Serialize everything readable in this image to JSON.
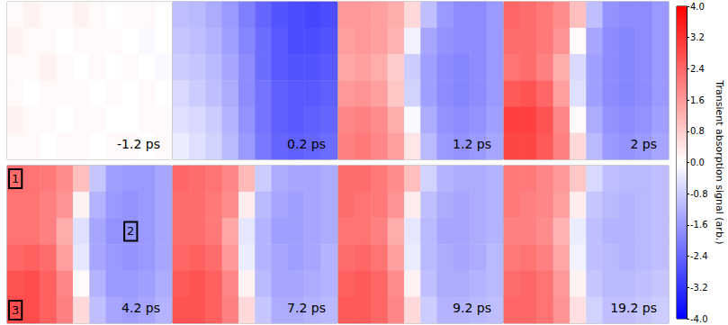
{
  "chart_data": {
    "type": "heatmap",
    "panels": [
      {
        "title": "-1.2 ps",
        "cells": [
          [
            0.1,
            0.2,
            0.1,
            0.1,
            0.2,
            0.1,
            0.0,
            0.1,
            0.1,
            0.0
          ],
          [
            0.2,
            0.1,
            0.1,
            0.0,
            0.1,
            0.1,
            0.1,
            0.0,
            -0.1,
            0.0
          ],
          [
            0.1,
            0.1,
            0.2,
            0.1,
            0.0,
            0.1,
            0.0,
            0.1,
            0.0,
            -0.1
          ],
          [
            0.1,
            0.0,
            0.1,
            0.1,
            0.1,
            0.0,
            0.1,
            0.0,
            0.1,
            0.0
          ],
          [
            0.2,
            0.1,
            0.1,
            0.0,
            0.1,
            0.1,
            0.0,
            0.0,
            0.1,
            0.1
          ],
          [
            0.1,
            0.1,
            0.0,
            0.1,
            0.1,
            0.0,
            0.1,
            0.1,
            0.0,
            0.1
          ]
        ]
      },
      {
        "title": "0.2 ps",
        "cells": [
          [
            -1.0,
            -1.1,
            -1.3,
            -1.6,
            -2.0,
            -2.4,
            -2.7,
            -2.8,
            -2.9,
            -2.8
          ],
          [
            -0.9,
            -1.0,
            -1.2,
            -1.5,
            -1.9,
            -2.3,
            -2.6,
            -2.8,
            -2.8,
            -2.7
          ],
          [
            -0.8,
            -0.9,
            -1.1,
            -1.4,
            -1.8,
            -2.3,
            -2.6,
            -2.7,
            -2.7,
            -2.6
          ],
          [
            -0.6,
            -0.8,
            -1.0,
            -1.3,
            -1.8,
            -2.2,
            -2.5,
            -2.6,
            -2.6,
            -2.5
          ],
          [
            -0.5,
            -0.6,
            -0.8,
            -1.2,
            -1.7,
            -2.2,
            -2.5,
            -2.6,
            -2.5,
            -2.4
          ],
          [
            -0.3,
            -0.5,
            -0.7,
            -1.1,
            -1.6,
            -2.1,
            -2.4,
            -2.5,
            -2.4,
            -2.3
          ]
        ]
      },
      {
        "title": "1.2 ps",
        "cells": [
          [
            1.6,
            1.6,
            1.5,
            1.3,
            0.6,
            -1.0,
            -1.6,
            -1.8,
            -1.8,
            -1.6
          ],
          [
            1.5,
            1.6,
            1.5,
            1.2,
            -0.2,
            -1.4,
            -1.7,
            -1.8,
            -1.8,
            -1.6
          ],
          [
            1.4,
            1.5,
            1.3,
            0.8,
            -0.8,
            -1.5,
            -1.8,
            -1.9,
            -1.8,
            -1.6
          ],
          [
            1.6,
            1.7,
            1.5,
            0.9,
            -0.7,
            -1.5,
            -1.8,
            -1.9,
            -1.8,
            -1.6
          ],
          [
            1.9,
            2.0,
            1.8,
            1.3,
            -0.1,
            -1.3,
            -1.7,
            -1.8,
            -1.7,
            -1.5
          ],
          [
            2.0,
            2.1,
            1.9,
            1.5,
            0.4,
            -1.1,
            -1.6,
            -1.7,
            -1.6,
            -1.4
          ]
        ]
      },
      {
        "title": "2 ps",
        "cells": [
          [
            2.4,
            2.3,
            2.1,
            1.8,
            1.0,
            -1.0,
            -1.7,
            -1.8,
            -1.8,
            -1.6
          ],
          [
            2.3,
            2.3,
            2.1,
            1.7,
            0.1,
            -1.4,
            -1.8,
            -1.9,
            -1.8,
            -1.6
          ],
          [
            2.2,
            2.3,
            2.0,
            1.3,
            -0.6,
            -1.5,
            -1.8,
            -1.9,
            -1.8,
            -1.6
          ],
          [
            2.6,
            2.7,
            2.4,
            1.5,
            -0.5,
            -1.5,
            -1.8,
            -1.9,
            -1.8,
            -1.6
          ],
          [
            3.0,
            3.0,
            2.7,
            1.9,
            0.1,
            -1.3,
            -1.7,
            -1.8,
            -1.7,
            -1.5
          ],
          [
            2.9,
            2.9,
            2.6,
            2.0,
            0.6,
            -1.1,
            -1.6,
            -1.7,
            -1.6,
            -1.4
          ]
        ]
      },
      {
        "title": "4.2 ps",
        "cells": [
          [
            2.3,
            2.2,
            2.1,
            1.8,
            1.0,
            -0.9,
            -1.5,
            -1.6,
            -1.6,
            -1.4
          ],
          [
            2.2,
            2.2,
            2.0,
            1.7,
            0.2,
            -1.2,
            -1.6,
            -1.7,
            -1.6,
            -1.4
          ],
          [
            2.2,
            2.2,
            2.0,
            1.3,
            -0.5,
            -1.4,
            -1.7,
            -1.7,
            -1.6,
            -1.4
          ],
          [
            2.4,
            2.5,
            2.3,
            1.5,
            -0.4,
            -1.4,
            -1.6,
            -1.7,
            -1.6,
            -1.4
          ],
          [
            2.7,
            2.8,
            2.5,
            1.9,
            0.1,
            -1.2,
            -1.6,
            -1.6,
            -1.5,
            -1.3
          ],
          [
            2.8,
            2.8,
            2.5,
            2.0,
            0.6,
            -1.0,
            -1.4,
            -1.5,
            -1.4,
            -1.2
          ]
        ],
        "annotations": [
          {
            "label": "1",
            "col": 0,
            "row": 0
          },
          {
            "label": "2",
            "col": 7,
            "row": 2
          },
          {
            "label": "3",
            "col": 0,
            "row": 5
          }
        ]
      },
      {
        "title": "7.2 ps",
        "cells": [
          [
            2.4,
            2.3,
            2.2,
            1.9,
            1.1,
            -0.8,
            -1.3,
            -1.4,
            -1.4,
            -1.3
          ],
          [
            2.3,
            2.3,
            2.1,
            1.8,
            0.3,
            -1.1,
            -1.4,
            -1.5,
            -1.4,
            -1.3
          ],
          [
            2.3,
            2.3,
            2.1,
            1.4,
            -0.4,
            -1.2,
            -1.5,
            -1.5,
            -1.4,
            -1.3
          ],
          [
            2.4,
            2.5,
            2.3,
            1.6,
            -0.3,
            -1.2,
            -1.4,
            -1.5,
            -1.4,
            -1.2
          ],
          [
            2.6,
            2.7,
            2.5,
            1.9,
            0.2,
            -1.1,
            -1.4,
            -1.4,
            -1.3,
            -1.2
          ],
          [
            2.7,
            2.7,
            2.5,
            2.0,
            0.6,
            -0.9,
            -1.3,
            -1.3,
            -1.2,
            -1.1
          ]
        ]
      },
      {
        "title": "9.2 ps",
        "cells": [
          [
            2.3,
            2.3,
            2.1,
            1.8,
            1.0,
            -0.7,
            -1.2,
            -1.3,
            -1.3,
            -1.2
          ],
          [
            2.3,
            2.2,
            2.1,
            1.7,
            0.3,
            -1.0,
            -1.3,
            -1.4,
            -1.3,
            -1.2
          ],
          [
            2.2,
            2.2,
            2.0,
            1.3,
            -0.4,
            -1.1,
            -1.4,
            -1.4,
            -1.3,
            -1.2
          ],
          [
            2.3,
            2.4,
            2.2,
            1.5,
            -0.3,
            -1.1,
            -1.3,
            -1.4,
            -1.3,
            -1.1
          ],
          [
            2.5,
            2.6,
            2.4,
            1.8,
            0.2,
            -1.0,
            -1.3,
            -1.3,
            -1.2,
            -1.1
          ],
          [
            2.6,
            2.6,
            2.4,
            1.9,
            0.6,
            -0.8,
            -1.2,
            -1.2,
            -1.1,
            -1.0
          ]
        ]
      },
      {
        "title": "19.2 ps",
        "cells": [
          [
            2.1,
            2.1,
            1.9,
            1.6,
            0.9,
            -0.6,
            -1.0,
            -1.1,
            -1.1,
            -1.0
          ],
          [
            2.1,
            2.0,
            1.9,
            1.5,
            0.3,
            -0.9,
            -1.1,
            -1.2,
            -1.1,
            -1.0
          ],
          [
            2.0,
            2.0,
            1.8,
            1.2,
            -0.3,
            -1.0,
            -1.2,
            -1.2,
            -1.1,
            -1.0
          ],
          [
            2.1,
            2.2,
            2.0,
            1.4,
            -0.2,
            -1.0,
            -1.1,
            -1.2,
            -1.1,
            -1.0
          ],
          [
            2.3,
            2.4,
            2.2,
            1.6,
            0.2,
            -0.9,
            -1.1,
            -1.1,
            -1.0,
            -0.9
          ],
          [
            2.4,
            2.4,
            2.2,
            1.7,
            0.5,
            -0.7,
            -1.0,
            -1.0,
            -0.9,
            -0.8
          ]
        ]
      }
    ],
    "colorbar": {
      "label": "Transient absorption signal (arb.)",
      "range": [
        -4,
        4
      ],
      "ticks": [
        {
          "value": -4,
          "label": "-4.0"
        },
        {
          "value": -3.2,
          "label": "-3.2"
        },
        {
          "value": -2.4,
          "label": "-2.4"
        },
        {
          "value": -1.6,
          "label": "-1.6"
        },
        {
          "value": -0.8,
          "label": "-0.8"
        },
        {
          "value": 0,
          "label": "0.0"
        },
        {
          "value": 0.8,
          "label": "0.8"
        },
        {
          "value": 1.6,
          "label": "1.6"
        },
        {
          "value": 2.4,
          "label": "2.4"
        },
        {
          "value": 3.2,
          "label": "3.2"
        },
        {
          "value": 4,
          "label": "4.0"
        }
      ]
    }
  }
}
